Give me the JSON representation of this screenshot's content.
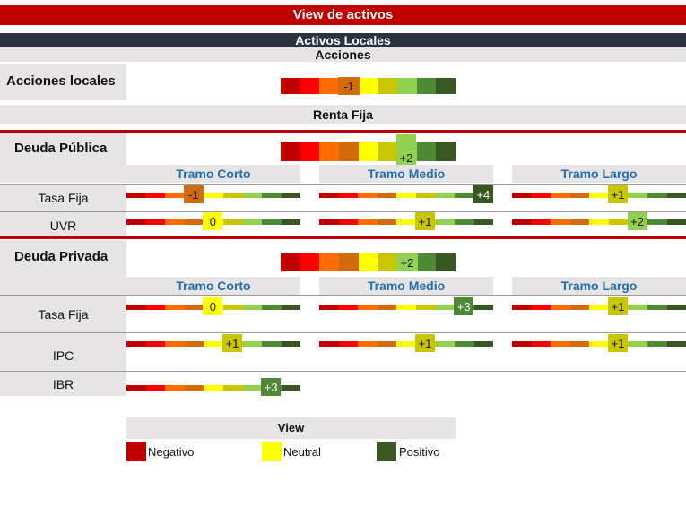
{
  "header": {
    "title": "View de activos",
    "subtitle": "Activos Locales"
  },
  "acciones": {
    "section_title": "Acciones",
    "row_label": "Acciones locales",
    "marker": "-1"
  },
  "renta_fija": {
    "section_title": "Renta Fija",
    "deuda_publica": {
      "label": "Deuda Pública",
      "overall_marker": "+2",
      "tramos": [
        "Tramo Corto",
        "Tramo Medio",
        "Tramo Largo"
      ],
      "rows": [
        {
          "label": "Tasa Fija",
          "markers": [
            "-1",
            "+4",
            "+1"
          ]
        },
        {
          "label": "UVR",
          "markers": [
            "0",
            "+1",
            "+2"
          ]
        }
      ]
    },
    "deuda_privada": {
      "label": "Deuda Privada",
      "overall_marker": "+2",
      "tramos": [
        "Tramo Corto",
        "Tramo Medio",
        "Tramo Largo"
      ],
      "rows": [
        {
          "label": "Tasa Fija",
          "markers": [
            "0",
            "+3",
            "+1"
          ]
        },
        {
          "label": "IPC",
          "markers": [
            "+1",
            "+1",
            "+1"
          ]
        },
        {
          "label": "IBR",
          "markers": [
            "+3"
          ]
        }
      ]
    }
  },
  "legend": {
    "title": "View",
    "items": [
      {
        "label": "Negativo",
        "color": "#c00000"
      },
      {
        "label": "Neutral",
        "color": "#ffff00"
      },
      {
        "label": "Positivo",
        "color": "#385723"
      }
    ]
  },
  "scale_colors": [
    "#c00000",
    "#ff0000",
    "#ff6d00",
    "#d06a0a",
    "#ffff00",
    "#c9c600",
    "#92d050",
    "#4e8a35",
    "#385723"
  ]
}
